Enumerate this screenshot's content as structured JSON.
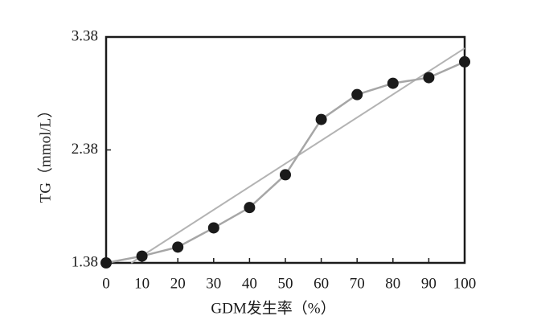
{
  "chart_data": {
    "type": "line",
    "x_label": "GDM发生率（%）",
    "y_label": "TG（mmol/L）",
    "x": [
      0,
      10,
      20,
      30,
      40,
      50,
      60,
      70,
      80,
      90,
      100
    ],
    "series": [
      {
        "color": "#a6a6a6",
        "marker_color": "#1a1a1a",
        "values": [
          1.38,
          1.44,
          1.52,
          1.69,
          1.87,
          2.16,
          2.65,
          2.87,
          2.97,
          3.02,
          3.16
        ]
      }
    ],
    "trend_line": {
      "color": "#b3b3b3",
      "x": [
        7,
        100
      ],
      "values": [
        1.38,
        3.28
      ]
    },
    "xlim": [
      0,
      100
    ],
    "xticks": [
      0,
      10,
      20,
      30,
      40,
      50,
      60,
      70,
      80,
      90,
      100
    ],
    "ylim": [
      1.38,
      3.38
    ],
    "yticks": [
      1.38,
      2.38,
      3.38
    ]
  }
}
